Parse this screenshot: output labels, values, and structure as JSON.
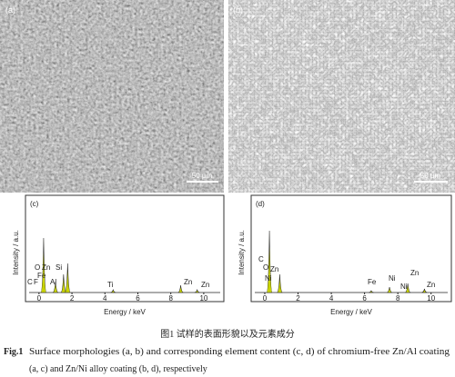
{
  "panels": [
    {
      "label": "(a)",
      "scale_bar": "50 μm"
    },
    {
      "label": "(b)",
      "scale_bar": "50 μm"
    }
  ],
  "spectra": [
    {
      "label": "(c)",
      "y_label": "Intensity / a.u.",
      "x_label": "Energy / keV",
      "xlim": [
        -0.6,
        11
      ],
      "ylim": [
        0,
        100
      ],
      "xticks": [
        0,
        2,
        4,
        6,
        8,
        10
      ],
      "peaks": {
        "x": [
          0.28,
          1.0,
          1.49,
          1.74,
          4.5,
          8.6,
          9.6
        ],
        "values": [
          60,
          12,
          20,
          32,
          3,
          8,
          3
        ]
      },
      "element_labels": [
        "C",
        "F",
        "O",
        "Zn",
        "Fe",
        "Al",
        "Si",
        "Ti",
        "Zn",
        "Zn"
      ]
    },
    {
      "label": "(d)",
      "y_label": "Intensity / a.u.",
      "x_label": "Energy / keV",
      "xlim": [
        -0.6,
        11
      ],
      "ylim": [
        0,
        100
      ],
      "xticks": [
        0,
        2,
        4,
        6,
        8,
        10
      ],
      "peaks": {
        "x": [
          0.28,
          0.9,
          6.4,
          7.5,
          8.6,
          9.6
        ],
        "values": [
          68,
          20,
          2,
          6,
          10,
          4
        ]
      },
      "element_labels": [
        "C",
        "O",
        "Zn",
        "Ni",
        "Fe",
        "Ni",
        "Ni",
        "Zn",
        "Zn"
      ]
    }
  ],
  "caption": {
    "chinese": "图1 试样的表面形貌以及元素成分",
    "lead": "Fig.1",
    "line1": "Surface morphologies (a, b) and corresponding element content (c, d) of chromium-free Zn/Al coating",
    "line2": "(a, c) and Zn/Ni alloy coating (b, d), respectively"
  }
}
